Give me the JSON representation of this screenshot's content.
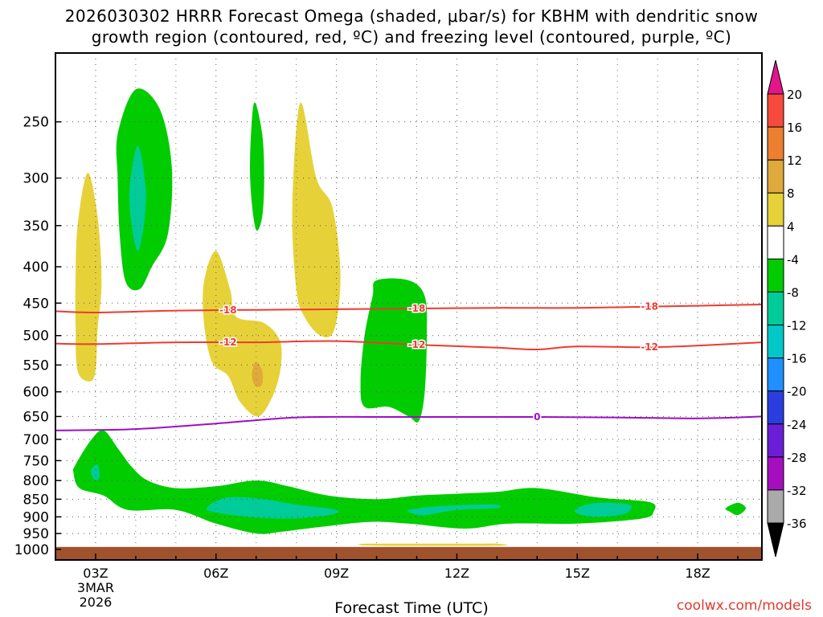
{
  "title": {
    "line1": "2026030302 HRRR Forecast Omega (shaded, μbar/s) for KBHM with dendritic snow",
    "line2": "growth region (contoured, red, ºC) and freezing level (contoured, purple, ºC)"
  },
  "credit": "coolwx.com/models",
  "chart_data": {
    "type": "heatmap",
    "title": "2026030302 HRRR Forecast Omega (shaded, μbar/s) for KBHM with dendritic snow growth region (contoured, red, ºC) and freezing level (contoured, purple, ºC)",
    "xlabel": "Forecast Time (UTC)",
    "ylabel": "",
    "x_ticks": [
      "03Z",
      "06Z",
      "09Z",
      "12Z",
      "15Z",
      "18Z"
    ],
    "x_tick_hours": [
      3,
      6,
      9,
      12,
      15,
      18
    ],
    "x_sublabels": [
      "3MAR",
      "2026"
    ],
    "x_range_hours": [
      2,
      19.6
    ],
    "y_ticks": [
      250,
      300,
      350,
      400,
      450,
      500,
      550,
      600,
      650,
      700,
      750,
      800,
      850,
      900,
      950,
      1000
    ],
    "y_range_hpa": [
      200,
      1035
    ],
    "y_scale": "log (pressure, reversed)",
    "grid": true,
    "surface_layer_color": "#a0522d",
    "colorbar": {
      "ticks": [
        20,
        16,
        12,
        8,
        4,
        -4,
        -8,
        -12,
        -16,
        -20,
        -24,
        -28,
        -32,
        -36
      ],
      "colors": [
        {
          "range": "16 to 20",
          "color": "#f64b3c"
        },
        {
          "range": "12 to 16",
          "color": "#ec7f30"
        },
        {
          "range": "8 to 12",
          "color": "#e0a93b"
        },
        {
          "range": "4 to 8",
          "color": "#e6d238"
        },
        {
          "range": "-4 to 4",
          "color": "#ffffff"
        },
        {
          "range": "-8 to -4",
          "color": "#00cc00"
        },
        {
          "range": "-12 to -8",
          "color": "#00cc99"
        },
        {
          "range": "-16 to -12",
          "color": "#00c8c8"
        },
        {
          "range": "-20 to -16",
          "color": "#1e90ff"
        },
        {
          "range": "-24 to -20",
          "color": "#2a3ee0"
        },
        {
          "range": "-28 to -24",
          "color": "#6a1fd6"
        },
        {
          "range": "-32 to -28",
          "color": "#a40ebf"
        },
        {
          "range": "-36 to -32",
          "color": "#aaaaaa"
        }
      ],
      "top_arrow_color": "#e0168a",
      "bottom_arrow_color": "#000000"
    },
    "contours": [
      {
        "label": "-18",
        "color": "#ee3a30",
        "points": [
          [
            2.0,
            462
          ],
          [
            3.0,
            464
          ],
          [
            5.0,
            461
          ],
          [
            7.0,
            460
          ],
          [
            9.0,
            459
          ],
          [
            11.0,
            458
          ],
          [
            13.0,
            457
          ],
          [
            15.0,
            457
          ],
          [
            17.0,
            455
          ],
          [
            19.6,
            452
          ]
        ]
      },
      {
        "label": "-12",
        "color": "#ee3a30",
        "points": [
          [
            2.0,
            513
          ],
          [
            3.0,
            514
          ],
          [
            5.0,
            511
          ],
          [
            7.0,
            511
          ],
          [
            9.0,
            509
          ],
          [
            11.0,
            515
          ],
          [
            13.0,
            520
          ],
          [
            14.0,
            523
          ],
          [
            15.0,
            518
          ],
          [
            17.0,
            519
          ],
          [
            19.6,
            511
          ]
        ]
      },
      {
        "label": "0",
        "color": "#9b0fc4",
        "points": [
          [
            2.0,
            680
          ],
          [
            4.0,
            677
          ],
          [
            6.0,
            665
          ],
          [
            8.0,
            652
          ],
          [
            10.0,
            651
          ],
          [
            12.0,
            651
          ],
          [
            14.0,
            651
          ],
          [
            16.0,
            652
          ],
          [
            18.0,
            654
          ],
          [
            19.6,
            650
          ]
        ]
      }
    ],
    "regions": [
      {
        "level": "4 to 8",
        "color": "#e6d238",
        "points": [
          [
            2.5,
            420
          ],
          [
            2.55,
            350
          ],
          [
            2.8,
            295
          ],
          [
            3.05,
            340
          ],
          [
            3.15,
            420
          ],
          [
            3.05,
            490
          ],
          [
            3.0,
            560
          ],
          [
            2.85,
            580
          ],
          [
            2.55,
            560
          ],
          [
            2.5,
            480
          ]
        ]
      },
      {
        "level": "4 to 8",
        "color": "#e6d238",
        "points": [
          [
            5.7,
            420
          ],
          [
            6.0,
            380
          ],
          [
            6.35,
            430
          ],
          [
            6.5,
            470
          ],
          [
            7.2,
            480
          ],
          [
            7.6,
            510
          ],
          [
            7.6,
            560
          ],
          [
            7.4,
            610
          ],
          [
            7.05,
            650
          ],
          [
            6.6,
            620
          ],
          [
            6.3,
            570
          ],
          [
            5.9,
            545
          ],
          [
            5.7,
            480
          ]
        ]
      },
      {
        "level": "8 to 12",
        "color": "#e0a93b",
        "points": [
          [
            7.0,
            545
          ],
          [
            7.15,
            560
          ],
          [
            7.15,
            585
          ],
          [
            7.0,
            590
          ],
          [
            6.9,
            575
          ],
          [
            6.92,
            555
          ]
        ]
      },
      {
        "level": "4 to 8",
        "color": "#e6d238",
        "points": [
          [
            7.9,
            330
          ],
          [
            8.1,
            235
          ],
          [
            8.5,
            300
          ],
          [
            8.9,
            330
          ],
          [
            9.1,
            410
          ],
          [
            8.95,
            490
          ],
          [
            8.6,
            500
          ],
          [
            8.2,
            470
          ],
          [
            8.0,
            430
          ]
        ]
      },
      {
        "level": "4 to 8",
        "color": "#e6d238",
        "points": [
          [
            9.6,
            985
          ],
          [
            9.8,
            982
          ],
          [
            12.2,
            982
          ],
          [
            13.0,
            982
          ],
          [
            13.0,
            988
          ],
          [
            10.0,
            988
          ]
        ]
      },
      {
        "level": "-8 to -4",
        "color": "#00cc00",
        "points": [
          [
            3.55,
            260
          ],
          [
            4.0,
            225
          ],
          [
            4.6,
            240
          ],
          [
            4.9,
            290
          ],
          [
            4.8,
            360
          ],
          [
            4.4,
            400
          ],
          [
            4.1,
            430
          ],
          [
            3.75,
            420
          ],
          [
            3.6,
            360
          ],
          [
            3.55,
            300
          ]
        ]
      },
      {
        "level": "-12 to -8",
        "color": "#00cc99",
        "points": [
          [
            3.85,
            310
          ],
          [
            4.05,
            270
          ],
          [
            4.25,
            310
          ],
          [
            4.2,
            350
          ],
          [
            4.05,
            380
          ],
          [
            3.9,
            350
          ]
        ]
      },
      {
        "level": "-8 to -4",
        "color": "#00cc00",
        "points": [
          [
            6.85,
            280
          ],
          [
            6.95,
            235
          ],
          [
            7.15,
            260
          ],
          [
            7.2,
            300
          ],
          [
            7.15,
            340
          ],
          [
            7.0,
            355
          ],
          [
            6.88,
            320
          ]
        ]
      },
      {
        "level": "-8 to -4",
        "color": "#00cc00",
        "points": [
          [
            10.0,
            418
          ],
          [
            10.8,
            418
          ],
          [
            11.2,
            440
          ],
          [
            11.25,
            500
          ],
          [
            11.2,
            600
          ],
          [
            11.05,
            660
          ],
          [
            10.8,
            650
          ],
          [
            10.3,
            630
          ],
          [
            9.7,
            630
          ],
          [
            9.6,
            580
          ],
          [
            9.7,
            500
          ],
          [
            9.9,
            440
          ]
        ]
      },
      {
        "level": "-8 to -4",
        "color": "#00cc00",
        "points": [
          [
            2.5,
            760
          ],
          [
            2.9,
            700
          ],
          [
            3.2,
            680
          ],
          [
            3.55,
            720
          ],
          [
            3.9,
            765
          ],
          [
            4.3,
            800
          ],
          [
            5.0,
            820
          ],
          [
            6.0,
            815
          ],
          [
            7.0,
            800
          ],
          [
            7.8,
            815
          ],
          [
            8.8,
            840
          ],
          [
            10.0,
            850
          ],
          [
            11.0,
            840
          ],
          [
            12.0,
            835
          ],
          [
            13.0,
            830
          ],
          [
            14.0,
            820
          ],
          [
            15.5,
            845
          ],
          [
            16.8,
            858
          ],
          [
            16.9,
            885
          ],
          [
            16.6,
            905
          ],
          [
            15.0,
            920
          ],
          [
            13.3,
            920
          ],
          [
            12.2,
            935
          ],
          [
            10.8,
            920
          ],
          [
            9.8,
            915
          ],
          [
            8.6,
            930
          ],
          [
            7.6,
            945
          ],
          [
            7.0,
            950
          ],
          [
            6.0,
            920
          ],
          [
            5.0,
            880
          ],
          [
            3.8,
            880
          ],
          [
            3.2,
            840
          ],
          [
            2.6,
            820
          ],
          [
            2.45,
            780
          ]
        ]
      },
      {
        "level": "-8 to -4",
        "color": "#00cc00",
        "points": [
          [
            18.7,
            875
          ],
          [
            19.0,
            860
          ],
          [
            19.2,
            875
          ],
          [
            19.0,
            895
          ],
          [
            18.8,
            885
          ]
        ]
      },
      {
        "level": "-12 to -8",
        "color": "#00cc99",
        "points": [
          [
            5.8,
            870
          ],
          [
            6.3,
            845
          ],
          [
            7.2,
            850
          ],
          [
            8.0,
            865
          ],
          [
            9.0,
            880
          ],
          [
            8.8,
            895
          ],
          [
            7.8,
            905
          ],
          [
            6.8,
            900
          ],
          [
            5.9,
            885
          ]
        ]
      },
      {
        "level": "-12 to -8",
        "color": "#00cc99",
        "points": [
          [
            10.8,
            880
          ],
          [
            11.5,
            870
          ],
          [
            12.5,
            865
          ],
          [
            13.0,
            865
          ],
          [
            13.0,
            875
          ],
          [
            12.0,
            880
          ],
          [
            11.2,
            895
          ],
          [
            10.9,
            890
          ]
        ]
      },
      {
        "level": "-12 to -8",
        "color": "#00cc99",
        "points": [
          [
            15.0,
            875
          ],
          [
            15.5,
            860
          ],
          [
            16.3,
            865
          ],
          [
            16.2,
            890
          ],
          [
            15.5,
            900
          ],
          [
            15.0,
            890
          ]
        ]
      },
      {
        "level": "-12 to -8",
        "color": "#00cc99",
        "points": [
          [
            2.9,
            770
          ],
          [
            3.05,
            760
          ],
          [
            3.1,
            790
          ],
          [
            3.0,
            800
          ],
          [
            2.9,
            785
          ]
        ]
      }
    ]
  }
}
